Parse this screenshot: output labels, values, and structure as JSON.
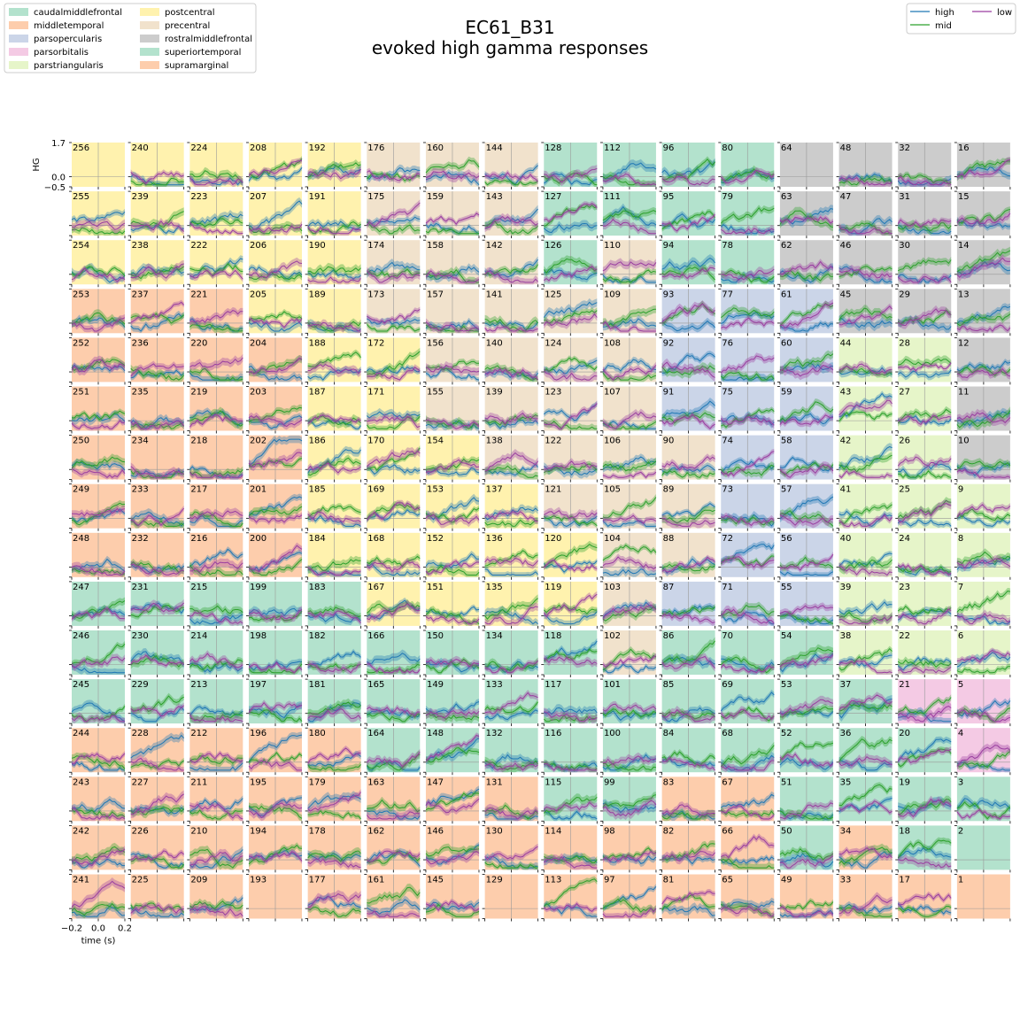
{
  "chart_data": {
    "type": "line",
    "title": "EC61_B31",
    "subtitle": "evoked high gamma responses",
    "xlabel": "time (s)",
    "ylabel": "HG",
    "xlim": [
      -0.2,
      0.2
    ],
    "ylim": [
      -0.5,
      1.7
    ],
    "xticks": [
      "−0.2",
      "0.0",
      "0.2"
    ],
    "yticks": [
      "1.7",
      "0.0",
      "−0.5"
    ],
    "grid": true,
    "region_legend_position": "top-left",
    "series_legend_position": "top-right",
    "regions": [
      {
        "name": "caudalmiddlefrontal",
        "color": "#b3e2cd"
      },
      {
        "name": "middletemporal",
        "color": "#fdcdac"
      },
      {
        "name": "parsopercularis",
        "color": "#cbd5e8"
      },
      {
        "name": "parsorbitalis",
        "color": "#f4cae4"
      },
      {
        "name": "parstriangularis",
        "color": "#e6f5c9"
      },
      {
        "name": "postcentral",
        "color": "#fff2ae"
      },
      {
        "name": "precentral",
        "color": "#f1e2cc"
      },
      {
        "name": "rostralmiddlefrontal",
        "color": "#cccccc"
      },
      {
        "name": "superiortemporal",
        "color": "#b3e2cd"
      },
      {
        "name": "supramarginal",
        "color": "#fdcdac"
      }
    ],
    "series": [
      {
        "name": "high",
        "color": "#1f77b4"
      },
      {
        "name": "mid",
        "color": "#2ca02c"
      },
      {
        "name": "low",
        "color": "#9a3ea0"
      }
    ],
    "grid_layout": {
      "rows": 16,
      "cols": 16,
      "numbering": "column-major, descending: electrode = 256 - 16*col - row",
      "region_by_row": [
        "ppppppyyyyyyyyyy",
        "ppppppyyyyyyyyyy",
        "ppppppyyyyyyyyyy",
        "pppppyyyyyyyyyyy",
        "pppppyyyyyyyyyyy",
        "pppppyyyyyyyyyyy",
        "ppppppyyyyyyyyyy",
        "ppppppyyyyyyyyyy",
        "ppppppyyyyyyyyyy",
        "ppppppyyyyyyyyyy",
        "ppppppyyyyyyyyyy",
        "ppppppyyyyyyyyyy",
        "ppppppyyyyyyyyyy",
        "ppppppyyyyyyyyyy",
        "ppppppyyyyyyyyyy",
        "ppppppyyyyyyyyyy"
      ],
      "cells": [
        [
          "Y",
          "Y",
          "Y",
          "Y",
          "Y",
          "P",
          "P",
          "P",
          "G",
          "G",
          "G",
          "G",
          "R",
          "R",
          "R",
          "R"
        ],
        [
          "Y",
          "Y",
          "Y",
          "Y",
          "Y",
          "P",
          "P",
          "P",
          "G",
          "G",
          "G",
          "G",
          "R",
          "R",
          "R",
          "R"
        ],
        [
          "Y",
          "Y",
          "Y",
          "Y",
          "Y",
          "P",
          "P",
          "P",
          "G",
          "P",
          "G",
          "G",
          "R",
          "R",
          "R",
          "R"
        ],
        [
          "O",
          "O",
          "O",
          "Y",
          "Y",
          "P",
          "P",
          "P",
          "P",
          "P",
          "B",
          "B",
          "B",
          "R",
          "R",
          "R"
        ],
        [
          "O",
          "O",
          "O",
          "O",
          "Y",
          "Y",
          "P",
          "P",
          "P",
          "P",
          "B",
          "B",
          "B",
          "T",
          "T",
          "R"
        ],
        [
          "O",
          "O",
          "O",
          "O",
          "Y",
          "Y",
          "P",
          "P",
          "P",
          "P",
          "B",
          "B",
          "B",
          "T",
          "T",
          "R"
        ],
        [
          "O",
          "O",
          "O",
          "O",
          "Y",
          "Y",
          "Y",
          "P",
          "P",
          "P",
          "P",
          "B",
          "B",
          "T",
          "T",
          "R"
        ],
        [
          "O",
          "O",
          "O",
          "O",
          "Y",
          "Y",
          "Y",
          "Y",
          "P",
          "P",
          "P",
          "B",
          "B",
          "T",
          "T",
          "T"
        ],
        [
          "O",
          "O",
          "O",
          "O",
          "Y",
          "Y",
          "Y",
          "Y",
          "Y",
          "P",
          "P",
          "B",
          "B",
          "T",
          "T",
          "T"
        ],
        [
          "G",
          "G",
          "G",
          "G",
          "G",
          "Y",
          "Y",
          "Y",
          "Y",
          "P",
          "B",
          "B",
          "B",
          "T",
          "T",
          "T"
        ],
        [
          "G",
          "G",
          "G",
          "G",
          "G",
          "G",
          "G",
          "G",
          "G",
          "P",
          "G",
          "G",
          "G",
          "T",
          "T",
          "T"
        ],
        [
          "G",
          "G",
          "G",
          "G",
          "G",
          "G",
          "G",
          "G",
          "G",
          "G",
          "G",
          "G",
          "G",
          "G",
          "K",
          "K"
        ],
        [
          "O",
          "O",
          "O",
          "O",
          "O",
          "G",
          "G",
          "G",
          "G",
          "G",
          "G",
          "G",
          "G",
          "G",
          "G",
          "K"
        ],
        [
          "O",
          "O",
          "O",
          "O",
          "O",
          "O",
          "O",
          "O",
          "G",
          "G",
          "O",
          "O",
          "G",
          "G",
          "G",
          "G"
        ],
        [
          "O",
          "O",
          "O",
          "O",
          "O",
          "O",
          "O",
          "O",
          "O",
          "O",
          "O",
          "O",
          "G",
          "O",
          "G",
          "G"
        ],
        [
          "O",
          "O",
          "O",
          "O",
          "O",
          "O",
          "O",
          "O",
          "O",
          "O",
          "O",
          "O",
          "O",
          "O",
          "O",
          "O"
        ]
      ],
      "cell_codes": {
        "G": "caudalmiddlefrontal / superiortemporal",
        "O": "middletemporal / supramarginal",
        "B": "parsopercularis",
        "K": "parsorbitalis",
        "T": "parstriangularis",
        "Y": "postcentral",
        "P": "precentral",
        "R": "rostralmiddlefrontal"
      },
      "empty_electrodes": [
        256,
        193,
        129,
        64,
        2,
        1
      ]
    }
  }
}
